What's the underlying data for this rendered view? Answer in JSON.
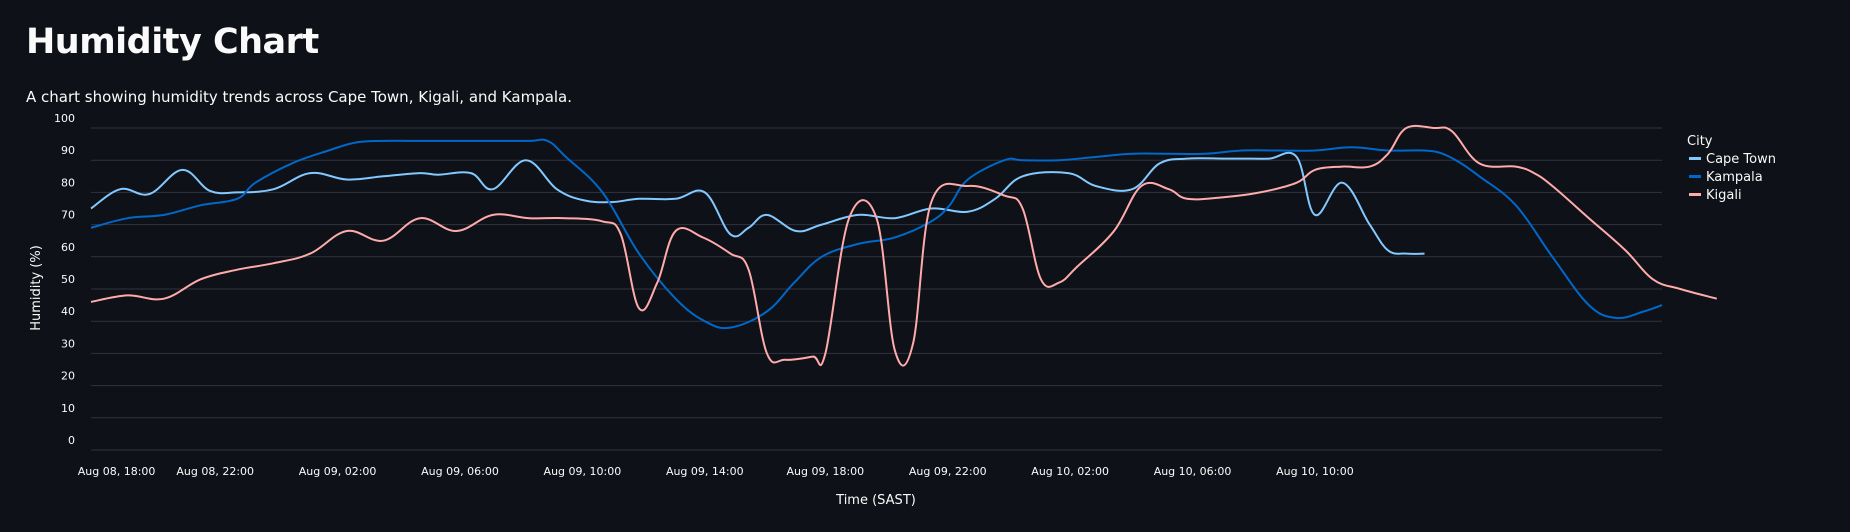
{
  "page": {
    "title": "Humidity Chart",
    "subtitle": "A chart showing humidity trends across Cape Town, Kigali, and Kampala."
  },
  "chart_data": {
    "type": "line",
    "xlabel": "Time (SAST)",
    "ylabel": "Humidity (%)",
    "ylim": [
      0,
      100
    ],
    "yticks": [
      0,
      10,
      20,
      30,
      40,
      50,
      60,
      70,
      80,
      90,
      100
    ],
    "xlim_hours": [
      0,
      70
    ],
    "xticks": [
      {
        "label": "Aug 08, 18:00",
        "hour": 1.4
      },
      {
        "label": "Aug 08, 22:00",
        "hour": 6.8
      },
      {
        "label": "Aug 09, 02:00",
        "hour": 13.5
      },
      {
        "label": "Aug 09, 06:00",
        "hour": 20.2
      },
      {
        "label": "Aug 09, 10:00",
        "hour": 26.9
      },
      {
        "label": "Aug 09, 14:00",
        "hour": 33.6
      },
      {
        "label": "Aug 09, 18:00",
        "hour": 40.2
      },
      {
        "label": "Aug 09, 22:00",
        "hour": 46.9
      },
      {
        "label": "Aug 10, 02:00",
        "hour": 53.6
      },
      {
        "label": "Aug 10, 06:00",
        "hour": 60.3
      },
      {
        "label": "Aug 10, 10:00",
        "hour": 67.0
      }
    ],
    "grid": true,
    "legend": {
      "title": "City",
      "placement": "right"
    },
    "series": [
      {
        "name": "Cape Town",
        "color": "#83c9ff",
        "points": [
          [
            0,
            75
          ],
          [
            1.6,
            81
          ],
          [
            3.2,
            79.5
          ],
          [
            5,
            87
          ],
          [
            6.5,
            80.5
          ],
          [
            8,
            80
          ],
          [
            10,
            81
          ],
          [
            12,
            86
          ],
          [
            14,
            84
          ],
          [
            16,
            85
          ],
          [
            18,
            86
          ],
          [
            19,
            85.5
          ],
          [
            20.8,
            86
          ],
          [
            22,
            81
          ],
          [
            23.8,
            90
          ],
          [
            25.5,
            81
          ],
          [
            27,
            77.5
          ],
          [
            28.5,
            77
          ],
          [
            30,
            78
          ],
          [
            32,
            78
          ],
          [
            33.6,
            80
          ],
          [
            35,
            67
          ],
          [
            36,
            69
          ],
          [
            37,
            73
          ],
          [
            38.6,
            68
          ],
          [
            40,
            70
          ],
          [
            42,
            73
          ],
          [
            44,
            72
          ],
          [
            46,
            75
          ],
          [
            48,
            74
          ],
          [
            49.5,
            78
          ],
          [
            51,
            85
          ],
          [
            53.5,
            86
          ],
          [
            55,
            82
          ],
          [
            57,
            81
          ],
          [
            58.5,
            89
          ],
          [
            60,
            90.5
          ],
          [
            62,
            90.5
          ],
          [
            63,
            90.5
          ],
          [
            64.5,
            90.5
          ],
          [
            66,
            91
          ],
          [
            67,
            73
          ],
          [
            68.5,
            83
          ],
          [
            70,
            70
          ],
          [
            71,
            62
          ],
          [
            72,
            61
          ],
          [
            73,
            61
          ]
        ]
      },
      {
        "name": "Kampala",
        "color": "#0068c9",
        "points": [
          [
            0,
            69
          ],
          [
            2,
            72
          ],
          [
            4,
            73
          ],
          [
            6,
            76
          ],
          [
            8,
            78
          ],
          [
            9,
            83
          ],
          [
            11,
            89
          ],
          [
            13,
            93
          ],
          [
            14.5,
            95.5
          ],
          [
            16,
            96
          ],
          [
            18,
            96
          ],
          [
            20,
            96
          ],
          [
            22,
            96
          ],
          [
            24,
            96
          ],
          [
            25,
            96
          ],
          [
            26,
            91
          ],
          [
            28,
            80
          ],
          [
            30,
            61
          ],
          [
            32,
            47
          ],
          [
            33.6,
            40
          ],
          [
            35,
            38
          ],
          [
            37,
            43
          ],
          [
            38.5,
            52
          ],
          [
            40,
            60
          ],
          [
            42,
            64
          ],
          [
            44,
            66
          ],
          [
            46,
            71
          ],
          [
            47,
            76
          ],
          [
            48,
            84
          ],
          [
            50,
            90
          ],
          [
            51,
            90
          ],
          [
            53,
            90
          ],
          [
            55,
            91
          ],
          [
            57,
            92
          ],
          [
            59,
            92
          ],
          [
            61,
            92
          ],
          [
            63,
            93
          ],
          [
            65,
            93
          ],
          [
            67,
            93
          ],
          [
            69,
            94
          ],
          [
            71,
            93
          ],
          [
            73,
            93
          ],
          [
            74,
            92
          ],
          [
            75,
            89
          ],
          [
            76,
            85
          ],
          [
            78,
            76
          ],
          [
            80,
            60
          ],
          [
            82,
            45
          ],
          [
            83.5,
            41
          ],
          [
            85,
            43
          ],
          [
            86,
            45
          ]
        ]
      },
      {
        "name": "Kigali",
        "color": "#ffabab",
        "points": [
          [
            0,
            46
          ],
          [
            2,
            48
          ],
          [
            4,
            47
          ],
          [
            6,
            53
          ],
          [
            8,
            56
          ],
          [
            10,
            58
          ],
          [
            12,
            61
          ],
          [
            14,
            68
          ],
          [
            16,
            65
          ],
          [
            18,
            72
          ],
          [
            20,
            68
          ],
          [
            22,
            73
          ],
          [
            24,
            72
          ],
          [
            26,
            72
          ],
          [
            28,
            71
          ],
          [
            29,
            67
          ],
          [
            30,
            44
          ],
          [
            31,
            52
          ],
          [
            32,
            68
          ],
          [
            33.5,
            66
          ],
          [
            35,
            61
          ],
          [
            36,
            56
          ],
          [
            37,
            30
          ],
          [
            38,
            28
          ],
          [
            39.5,
            29
          ],
          [
            40.2,
            30
          ],
          [
            41.5,
            72
          ],
          [
            43,
            72
          ],
          [
            44,
            31
          ],
          [
            45,
            33
          ],
          [
            46,
            77
          ],
          [
            48,
            82
          ],
          [
            50,
            79
          ],
          [
            51,
            75
          ],
          [
            52,
            53
          ],
          [
            53,
            52
          ],
          [
            54,
            57
          ],
          [
            56,
            68
          ],
          [
            57.5,
            82
          ],
          [
            59,
            81
          ],
          [
            60,
            78
          ],
          [
            62,
            78.5
          ],
          [
            64,
            80
          ],
          [
            66,
            83
          ],
          [
            67,
            87
          ],
          [
            68.5,
            88
          ],
          [
            70,
            88
          ],
          [
            71,
            92
          ],
          [
            72,
            100
          ],
          [
            73.5,
            100
          ],
          [
            74.5,
            99
          ],
          [
            76,
            89
          ],
          [
            78,
            88
          ],
          [
            79,
            86
          ],
          [
            80,
            82
          ],
          [
            82,
            72
          ],
          [
            84,
            62
          ],
          [
            85.5,
            53
          ],
          [
            87,
            50
          ],
          [
            89,
            47
          ]
        ]
      }
    ]
  }
}
